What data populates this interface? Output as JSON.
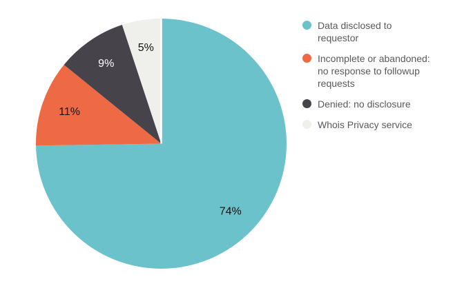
{
  "chart_data": {
    "type": "pie",
    "unit": "percent",
    "start_angle_deg": 0,
    "direction": "clockwise",
    "legend_position": "right",
    "background_color": "#ffffff",
    "legend_text_color": "#58595b",
    "slice_separator_color": "#ffffff",
    "slices": [
      {
        "label": "Data disclosed to\nrequestor",
        "value": 74,
        "display": "74%",
        "color": "#6bc2ca",
        "label_color": "#111111"
      },
      {
        "label": "Incomplete or abandoned:\nno response to followup\nrequests",
        "value": 11,
        "display": "11%",
        "color": "#ed6a45",
        "label_color": "#111111"
      },
      {
        "label": "Denied: no disclosure",
        "value": 9,
        "display": "9%",
        "color": "#46434a",
        "label_color": "#ffffff"
      },
      {
        "label": "Whois Privacy service",
        "value": 5,
        "display": "5%",
        "color": "#efefec",
        "label_color": "#111111"
      }
    ]
  }
}
